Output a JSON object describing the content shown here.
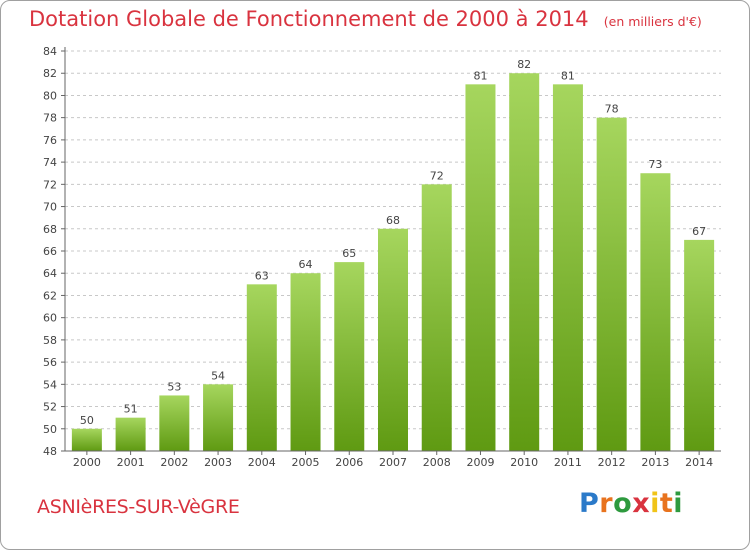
{
  "chart_data": {
    "type": "bar",
    "title": "Dotation Globale de Fonctionnement de 2000 à 2014",
    "subtitle": "(en milliers d'€)",
    "categories": [
      "2000",
      "2001",
      "2002",
      "2003",
      "2004",
      "2005",
      "2006",
      "2007",
      "2008",
      "2009",
      "2010",
      "2011",
      "2012",
      "2013",
      "2014"
    ],
    "values": [
      50,
      51,
      53,
      54,
      63,
      64,
      65,
      68,
      72,
      81,
      82,
      81,
      78,
      73,
      67
    ],
    "ylim": [
      48,
      84
    ],
    "yticks": [
      48,
      50,
      52,
      54,
      56,
      58,
      60,
      62,
      64,
      66,
      68,
      70,
      72,
      74,
      76,
      78,
      80,
      82,
      84
    ],
    "grid": true,
    "xlabel": "",
    "ylabel": ""
  },
  "commune": "ASNIèRES-SUR-VèGRE",
  "logo": {
    "letters": [
      "P",
      "r",
      "o",
      "x",
      "i",
      "t",
      "i"
    ]
  },
  "colors": {
    "title": "#d9333f",
    "bar_top": "#a6d65e",
    "bar_bottom": "#5f9a12",
    "grid": "#c8c8c8",
    "axis": "#666666"
  }
}
